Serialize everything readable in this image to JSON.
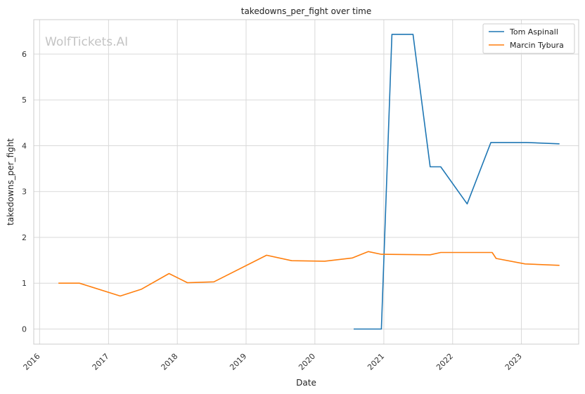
{
  "chart_data": {
    "type": "line",
    "title": "takedowns_per_fight over time",
    "xlabel": "Date",
    "ylabel": "takedowns_per_fight",
    "watermark": "WolfTickets.AI",
    "xlim": [
      "2015-12-01",
      "2023-11-01"
    ],
    "ylim": [
      -0.33,
      6.75
    ],
    "x_ticks": [
      "2016-01-01",
      "2017-01-01",
      "2018-01-01",
      "2019-01-01",
      "2020-01-01",
      "2021-01-01",
      "2022-01-01",
      "2023-01-01"
    ],
    "x_tick_labels": [
      "2016",
      "2017",
      "2018",
      "2019",
      "2020",
      "2021",
      "2022",
      "2023"
    ],
    "y_ticks": [
      0,
      1,
      2,
      3,
      4,
      5,
      6
    ],
    "y_tick_labels": [
      "0",
      "1",
      "2",
      "3",
      "4",
      "5",
      "6"
    ],
    "grid": true,
    "legend_position": "top-right",
    "series": [
      {
        "name": "Tom Aspinall",
        "color": "#1f77b4",
        "points": [
          [
            "2020-07-25",
            0.0
          ],
          [
            "2020-12-19",
            0.0
          ],
          [
            "2021-02-13",
            6.43
          ],
          [
            "2021-06-05",
            6.43
          ],
          [
            "2021-09-04",
            3.54
          ],
          [
            "2021-10-30",
            3.54
          ],
          [
            "2022-03-19",
            2.73
          ],
          [
            "2022-07-23",
            4.07
          ],
          [
            "2023-01-28",
            4.07
          ],
          [
            "2023-07-22",
            4.04
          ]
        ]
      },
      {
        "name": "Marcin Tybura",
        "color": "#ff7f0e",
        "points": [
          [
            "2016-04-10",
            1.0
          ],
          [
            "2016-07-30",
            1.0
          ],
          [
            "2017-03-04",
            0.72
          ],
          [
            "2017-06-25",
            0.87
          ],
          [
            "2017-11-18",
            1.21
          ],
          [
            "2018-02-24",
            1.01
          ],
          [
            "2018-07-14",
            1.03
          ],
          [
            "2019-04-20",
            1.61
          ],
          [
            "2019-08-31",
            1.49
          ],
          [
            "2020-02-22",
            1.48
          ],
          [
            "2020-07-18",
            1.55
          ],
          [
            "2020-10-10",
            1.69
          ],
          [
            "2020-12-19",
            1.63
          ],
          [
            "2021-09-04",
            1.62
          ],
          [
            "2021-10-30",
            1.67
          ],
          [
            "2022-07-30",
            1.67
          ],
          [
            "2022-08-20",
            1.54
          ],
          [
            "2023-01-21",
            1.42
          ],
          [
            "2023-07-22",
            1.39
          ]
        ]
      }
    ]
  }
}
